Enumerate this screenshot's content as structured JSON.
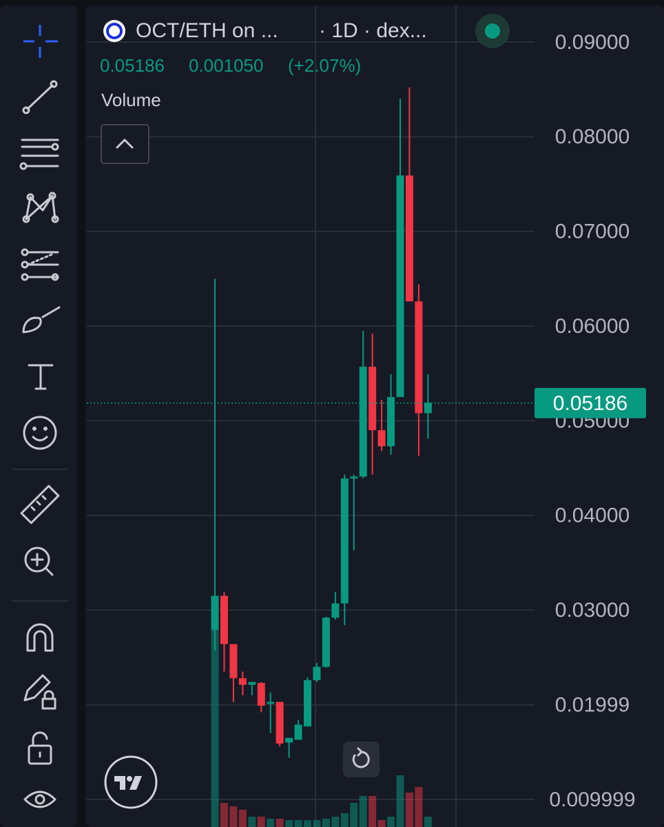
{
  "chart_data": {
    "type": "candlestick",
    "title": "OCT/ETH on ...",
    "interval": "· 1D · dex...",
    "quote": [
      "0.05186",
      "0.001050",
      "(+2.07%)"
    ],
    "volume_label": "Volume",
    "last_price": 0.05186,
    "up_color": "#089981",
    "down_color": "#f23645",
    "grid": true,
    "ylim": [
      0.007085,
      0.094436
    ],
    "yticks": [
      {
        "value": 0.09,
        "label": "0.09000"
      },
      {
        "value": 0.08,
        "label": "0.08000"
      },
      {
        "value": 0.07,
        "label": "0.07000"
      },
      {
        "value": 0.06,
        "label": "0.06000"
      },
      {
        "value": 0.05,
        "label": "0.05000"
      },
      {
        "value": 0.04,
        "label": "0.04000"
      },
      {
        "value": 0.03,
        "label": "0.03000"
      },
      0.01999,
      0.009999
    ],
    "y2lim": [
      0,
      400
    ],
    "open": [
      0.0279,
      0.0315,
      0.0264,
      0.0228,
      0.0221,
      0.0223,
      0.0201,
      0.0203,
      0.016,
      0.0163,
      0.0177,
      0.0226,
      0.024,
      0.0292,
      0.0307,
      0.0439,
      0.0441,
      0.0557,
      0.049,
      0.0473,
      0.0525,
      0.0759,
      0.0626,
      0.0508
    ],
    "high": [
      0.065,
      0.0319,
      0.0264,
      0.0235,
      0.0224,
      0.0224,
      0.0213,
      0.0203,
      0.0165,
      0.0184,
      0.0229,
      0.0244,
      0.0293,
      0.0319,
      0.0443,
      0.0443,
      0.0595,
      0.0592,
      0.0522,
      0.0549,
      0.084,
      0.0852,
      0.0644,
      0.0549
    ],
    "low": [
      0.0257,
      0.0235,
      0.0203,
      0.021,
      0.021,
      0.0192,
      0.017,
      0.0156,
      0.0144,
      0.0163,
      0.0177,
      0.0224,
      0.0239,
      0.029,
      0.0284,
      0.0363,
      0.0439,
      0.0443,
      0.0468,
      0.0464,
      0.0525,
      0.0626,
      0.0463,
      0.0481
    ],
    "close": [
      0.0315,
      0.0264,
      0.0228,
      0.0221,
      0.0224,
      0.0199,
      0.0203,
      0.0159,
      0.0165,
      0.0179,
      0.0226,
      0.024,
      0.0292,
      0.0307,
      0.0439,
      0.0441,
      0.0557,
      0.049,
      0.0473,
      0.0525,
      0.0759,
      0.0626,
      0.0508,
      0.0519
    ],
    "volume": [
      330,
      35,
      30,
      25,
      15,
      15,
      12,
      12,
      10,
      10,
      10,
      10,
      12,
      15,
      20,
      35,
      45,
      45,
      10,
      15,
      75,
      50,
      58,
      15
    ]
  }
}
